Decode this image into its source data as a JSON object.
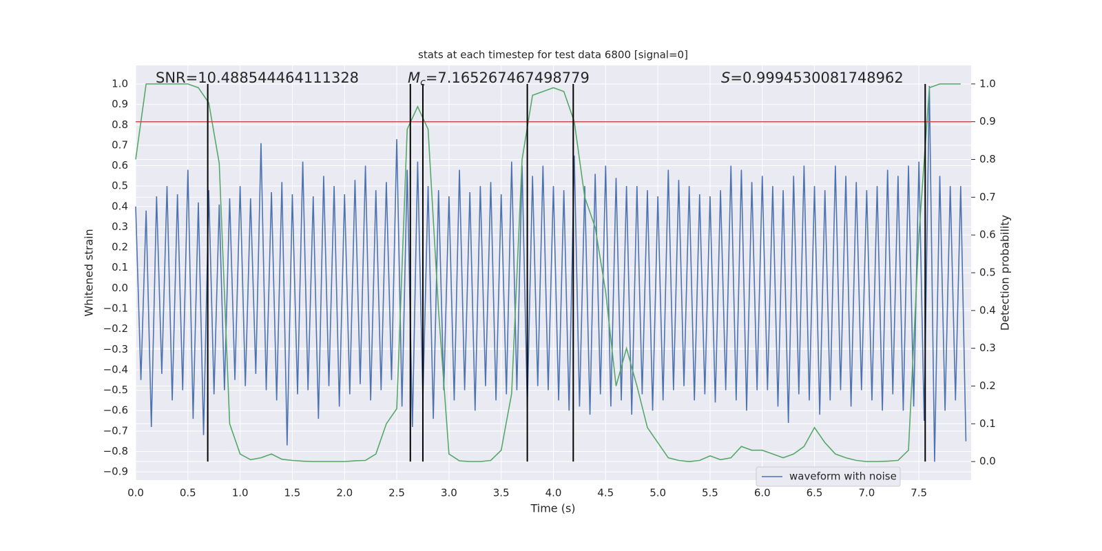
{
  "chart_data": {
    "type": "line",
    "title": "stats at each timestep for test data 6800 [signal=0]",
    "xlabel": "Time (s)",
    "ylabel": "Whitened strain",
    "y2label": "Detection probability",
    "annotations": [
      {
        "text": "SNR=10.488544464111328"
      },
      {
        "symbol": "M",
        "subscript": "c",
        "text": "=7.165267467498779"
      },
      {
        "symbol": "S",
        "text": "=0.9994530081748962"
      }
    ],
    "xlim": [
      0,
      8
    ],
    "ylim": [
      -0.94,
      1.091
    ],
    "y2lim": [
      -0.049,
      1.049
    ],
    "xticks": [
      {
        "value": 0,
        "label": "0.0"
      },
      0.5,
      {
        "value": 1,
        "label": "1.0"
      },
      1.5,
      {
        "value": 2,
        "label": "2.0"
      },
      2.5,
      {
        "value": 3,
        "label": "3.0"
      },
      3.5,
      {
        "value": 4,
        "label": "4.0"
      },
      4.5,
      {
        "value": 5,
        "label": "5.0"
      },
      5.5,
      {
        "value": 6,
        "label": "6.0"
      },
      6.5,
      {
        "value": 7,
        "label": "7.0"
      },
      7.5
    ],
    "yticks": [
      {
        "value": -0.9,
        "label": "−0.9"
      },
      {
        "value": -0.8,
        "label": "−0.8"
      },
      {
        "value": -0.7,
        "label": "−0.7"
      },
      {
        "value": -0.6,
        "label": "−0.6"
      },
      {
        "value": -0.5,
        "label": "−0.5"
      },
      {
        "value": -0.4,
        "label": "−0.4"
      },
      {
        "value": -0.3,
        "label": "−0.3"
      },
      {
        "value": -0.2,
        "label": "−0.2"
      },
      {
        "value": -0.1,
        "label": "−0.1"
      },
      {
        "value": 0,
        "label": "0.0"
      },
      0.1,
      0.2,
      0.3,
      0.4,
      0.5,
      0.6,
      0.7,
      0.8,
      0.9,
      {
        "value": 1,
        "label": "1.0"
      }
    ],
    "y2ticks": [
      {
        "value": 0,
        "label": "0.0"
      },
      0.1,
      0.2,
      0.3,
      0.4,
      0.5,
      0.6,
      0.7,
      0.8,
      0.9,
      {
        "value": 1,
        "label": "1.0"
      }
    ],
    "grid": true,
    "legend": "lower right",
    "threshold": {
      "value": 0.9,
      "axis": "y2",
      "color": "#c44e52"
    },
    "vlines": {
      "x": [
        0.69,
        2.63,
        2.75,
        3.75,
        4.19,
        7.56
      ],
      "color": "#000000"
    },
    "series": [
      {
        "name": "waveform with noise",
        "color": "#4c72b0",
        "x": [
          0,
          0.05,
          0.1,
          0.15,
          0.2,
          0.25,
          0.3,
          0.35,
          0.4,
          0.45,
          0.5,
          0.55,
          0.6,
          0.65,
          0.7,
          0.75,
          0.8,
          0.85,
          0.9,
          0.95,
          1,
          1.05,
          1.1,
          1.15,
          1.2,
          1.25,
          1.3,
          1.35,
          1.4,
          1.45,
          1.5,
          1.55,
          1.6,
          1.65,
          1.7,
          1.75,
          1.8,
          1.85,
          1.9,
          1.95,
          2,
          2.05,
          2.1,
          2.15,
          2.2,
          2.25,
          2.3,
          2.35,
          2.4,
          2.45,
          2.5,
          2.55,
          2.6,
          2.65,
          2.7,
          2.75,
          2.8,
          2.85,
          2.9,
          2.95,
          3,
          3.05,
          3.1,
          3.15,
          3.2,
          3.25,
          3.3,
          3.35,
          3.4,
          3.45,
          3.5,
          3.55,
          3.6,
          3.65,
          3.7,
          3.75,
          3.8,
          3.85,
          3.9,
          3.95,
          4,
          4.05,
          4.1,
          4.15,
          4.2,
          4.25,
          4.3,
          4.35,
          4.4,
          4.45,
          4.5,
          4.55,
          4.6,
          4.65,
          4.7,
          4.75,
          4.8,
          4.85,
          4.9,
          4.95,
          5,
          5.05,
          5.1,
          5.15,
          5.2,
          5.25,
          5.3,
          5.35,
          5.4,
          5.45,
          5.5,
          5.55,
          5.6,
          5.65,
          5.7,
          5.75,
          5.8,
          5.85,
          5.9,
          5.95,
          6,
          6.05,
          6.1,
          6.15,
          6.2,
          6.25,
          6.3,
          6.35,
          6.4,
          6.45,
          6.5,
          6.55,
          6.6,
          6.65,
          6.7,
          6.75,
          6.8,
          6.85,
          6.9,
          6.95,
          7,
          7.05,
          7.1,
          7.15,
          7.2,
          7.25,
          7.3,
          7.35,
          7.4,
          7.45,
          7.5,
          7.55,
          7.6,
          7.65,
          7.7,
          7.75,
          7.8,
          7.85,
          7.9,
          7.95
        ],
        "values": [
          0.4,
          -0.45,
          0.38,
          -0.68,
          0.45,
          -0.42,
          0.5,
          -0.55,
          0.46,
          -0.5,
          0.58,
          -0.64,
          0.42,
          -0.72,
          0.48,
          -0.52,
          0.41,
          -0.5,
          0.44,
          -0.45,
          0.5,
          -0.48,
          0.44,
          -0.42,
          0.71,
          -0.5,
          0.47,
          -0.55,
          0.52,
          -0.77,
          0.46,
          -0.52,
          0.62,
          -0.5,
          0.45,
          -0.64,
          0.55,
          -0.48,
          0.5,
          -0.58,
          0.46,
          -0.52,
          0.53,
          -0.47,
          0.6,
          -0.55,
          0.48,
          -0.5,
          0.52,
          -0.45,
          0.73,
          -0.58,
          0.58,
          -0.68,
          0.62,
          -0.55,
          0.5,
          -0.64,
          0.48,
          -0.5,
          0.45,
          -0.55,
          0.58,
          -0.5,
          0.47,
          -0.6,
          0.5,
          -0.48,
          0.52,
          -0.55,
          0.46,
          -0.52,
          0.62,
          -0.5,
          0.6,
          -0.58,
          0.55,
          -0.48,
          0.6,
          -0.5,
          0.5,
          -0.55,
          0.48,
          -0.6,
          0.65,
          -0.58,
          0.5,
          -0.62,
          0.56,
          -0.52,
          0.6,
          -0.58,
          0.54,
          -0.55,
          0.5,
          -0.62,
          0.5,
          -0.52,
          0.48,
          -0.6,
          0.45,
          -0.55,
          0.58,
          -0.5,
          0.53,
          -0.48,
          0.5,
          -0.55,
          0.46,
          -0.52,
          0.45,
          -0.56,
          0.48,
          -0.5,
          0.6,
          -0.55,
          0.58,
          -0.6,
          0.52,
          -0.5,
          0.55,
          -0.5,
          0.5,
          -0.58,
          0.48,
          -0.66,
          0.55,
          -0.52,
          0.6,
          -0.55,
          0.5,
          -0.62,
          0.48,
          -0.55,
          0.6,
          -0.5,
          0.55,
          -0.58,
          0.52,
          -0.5,
          0.48,
          -0.55,
          0.5,
          -0.6,
          0.58,
          -0.52,
          0.55,
          -0.6,
          0.6,
          -0.58,
          0.62,
          -0.65,
          0.99,
          -0.85,
          0.55,
          -0.6,
          0.5,
          -0.55,
          0.5,
          -0.75
        ]
      },
      {
        "color": "#55a868",
        "axis": "y2",
        "x": [
          0,
          0.1,
          0.2,
          0.3,
          0.4,
          0.5,
          0.6,
          0.7,
          0.8,
          0.9,
          1,
          1.1,
          1.2,
          1.3,
          1.4,
          1.5,
          1.6,
          1.7,
          1.8,
          1.9,
          2,
          2.1,
          2.2,
          2.3,
          2.4,
          2.5,
          2.6,
          2.7,
          2.8,
          2.9,
          3,
          3.1,
          3.2,
          3.3,
          3.4,
          3.5,
          3.6,
          3.7,
          3.8,
          3.9,
          4,
          4.1,
          4.2,
          4.3,
          4.4,
          4.5,
          4.6,
          4.7,
          4.8,
          4.9,
          5,
          5.1,
          5.2,
          5.3,
          5.4,
          5.5,
          5.6,
          5.7,
          5.8,
          5.9,
          6,
          6.1,
          6.2,
          6.3,
          6.4,
          6.5,
          6.6,
          6.7,
          6.8,
          6.9,
          7,
          7.1,
          7.2,
          7.3,
          7.4,
          7.5,
          7.6,
          7.7,
          7.8,
          7.9
        ],
        "values": [
          0.8,
          1,
          1,
          1,
          1,
          1,
          0.99,
          0.95,
          0.79,
          0.1,
          0.02,
          0.005,
          0.01,
          0.02,
          0.006,
          0.003,
          0.001,
          0,
          0,
          0,
          0,
          0.002,
          0.003,
          0.02,
          0.1,
          0.14,
          0.88,
          0.94,
          0.88,
          0.4,
          0.02,
          0.002,
          0,
          0,
          0.003,
          0.03,
          0.18,
          0.8,
          0.97,
          0.98,
          0.99,
          0.98,
          0.9,
          0.7,
          0.62,
          0.45,
          0.2,
          0.3,
          0.2,
          0.09,
          0.05,
          0.01,
          0.003,
          0,
          0.003,
          0.015,
          0.005,
          0.01,
          0.04,
          0.03,
          0.03,
          0.02,
          0.01,
          0.02,
          0.04,
          0.09,
          0.05,
          0.02,
          0.01,
          0.003,
          0,
          0,
          0.001,
          0.003,
          0.03,
          0.6,
          0.99,
          1,
          1,
          1
        ]
      }
    ]
  }
}
